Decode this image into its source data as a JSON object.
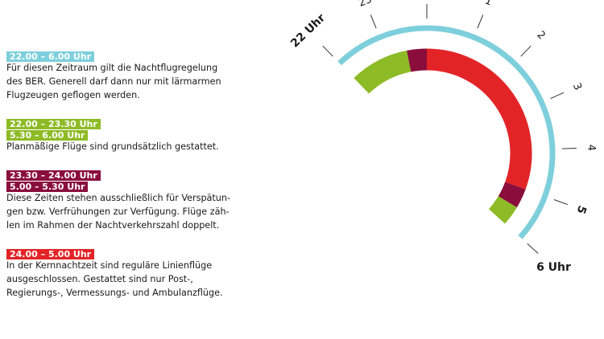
{
  "colors": {
    "night": "#7ecfdc",
    "planned": "#8dbb26",
    "delay": "#8a0e3c",
    "core": "#e32427"
  },
  "legend": [
    {
      "tags": [
        {
          "text": "22.00 – 6.00 Uhr",
          "color": "#7ecfdc"
        }
      ],
      "lines": [
        "Für diesen Zeitraum gilt die Nachtflugregelung",
        "des BER. Generell darf dann nur mit lärmarmen",
        "Flugzeugen geflogen werden."
      ]
    },
    {
      "tags": [
        {
          "text": "22.00 – 23.30 Uhr",
          "color": "#8dbb26"
        },
        {
          "text": "5.30 – 6.00 Uhr",
          "color": "#8dbb26"
        }
      ],
      "lines": [
        "Planmäßige Flüge sind grundsätzlich gestattet."
      ]
    },
    {
      "tags": [
        {
          "text": "23.30 – 24.00 Uhr",
          "color": "#8a0e3c"
        },
        {
          "text": "5.00 – 5.30 Uhr",
          "color": "#8a0e3c"
        }
      ],
      "lines": [
        "Diese Zeiten stehen ausschließlich für Verspätun-",
        "gen bzw. Verfrühungen zur Verfügung. Flüge zäh-",
        "len im Rahmen der Nachtverkehrszahl doppelt."
      ]
    },
    {
      "tags": [
        {
          "text": "24.00 – 5.00 Uhr",
          "color": "#e32427"
        }
      ],
      "lines": [
        "In der Kernnachtzeit sind reguläre Linienflüge",
        "ausgeschlossen. Gestattet sind nur Post-,",
        "Regierungs-, Vermessungs- und Ambulanzflüge."
      ]
    }
  ],
  "dial": {
    "hour_labels": [
      {
        "hour": 22,
        "text": "22 Uhr",
        "bold": true
      },
      {
        "hour": 23,
        "text": "23",
        "bold": false
      },
      {
        "hour": 24,
        "text": "",
        "bold": false
      },
      {
        "hour": 25,
        "text": "1",
        "bold": false
      },
      {
        "hour": 26,
        "text": "2",
        "bold": false
      },
      {
        "hour": 27,
        "text": "3",
        "bold": false
      },
      {
        "hour": 28,
        "text": "4",
        "bold": false
      },
      {
        "hour": 29,
        "text": "5",
        "bold": true
      },
      {
        "hour": 30,
        "text": "6 Uhr",
        "bold": true
      }
    ],
    "outer_ring": {
      "start": 22,
      "end": 30
    },
    "segments": [
      {
        "name": "planned-evening",
        "start": 22,
        "end": 23.5,
        "color": "#8dbb26"
      },
      {
        "name": "delay-evening",
        "start": 23.5,
        "end": 24,
        "color": "#8a0e3c"
      },
      {
        "name": "core-night",
        "start": 24,
        "end": 29,
        "color": "#e32427"
      },
      {
        "name": "delay-morning",
        "start": 29,
        "end": 29.5,
        "color": "#8a0e3c"
      },
      {
        "name": "planned-morning",
        "start": 29.5,
        "end": 30,
        "color": "#8dbb26"
      }
    ]
  }
}
